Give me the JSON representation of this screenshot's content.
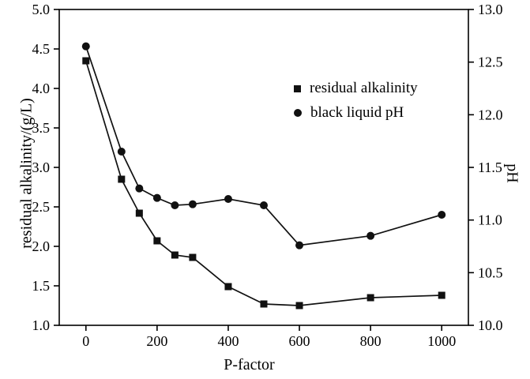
{
  "chart_data": {
    "type": "line",
    "title": "",
    "xlabel": "P-factor",
    "ylabel_left": "residual alkalinity/(g/L)",
    "ylabel_right": "pH",
    "xlim": [
      -75,
      1075
    ],
    "xticks": [
      0,
      200,
      400,
      600,
      800,
      1000
    ],
    "ylim_left": [
      1.0,
      5.0
    ],
    "yticks_left": [
      1.0,
      1.5,
      2.0,
      2.5,
      3.0,
      3.5,
      4.0,
      4.5,
      5.0
    ],
    "ylim_right": [
      10.0,
      13.0
    ],
    "yticks_right": [
      10.0,
      10.5,
      11.0,
      11.5,
      12.0,
      12.5,
      13.0
    ],
    "grid": false,
    "legend_position": "upper-right-inside",
    "series": [
      {
        "name": "residual alkalinity",
        "axis": "left",
        "marker": "square",
        "x": [
          0,
          100,
          150,
          200,
          250,
          300,
          400,
          500,
          600,
          800,
          1000
        ],
        "values": [
          4.35,
          2.85,
          2.42,
          2.07,
          1.89,
          1.86,
          1.49,
          1.27,
          1.25,
          1.35,
          1.38
        ]
      },
      {
        "name": "black liquid pH",
        "axis": "right",
        "marker": "circle",
        "x": [
          0,
          100,
          150,
          200,
          250,
          300,
          400,
          500,
          600,
          800,
          1000
        ],
        "values": [
          12.65,
          11.65,
          11.3,
          11.21,
          11.14,
          11.15,
          11.2,
          11.14,
          10.76,
          10.85,
          11.05
        ]
      }
    ],
    "colors": {
      "line": "#111111",
      "marker": "#111111",
      "axis": "#000000",
      "background": "#ffffff"
    }
  }
}
